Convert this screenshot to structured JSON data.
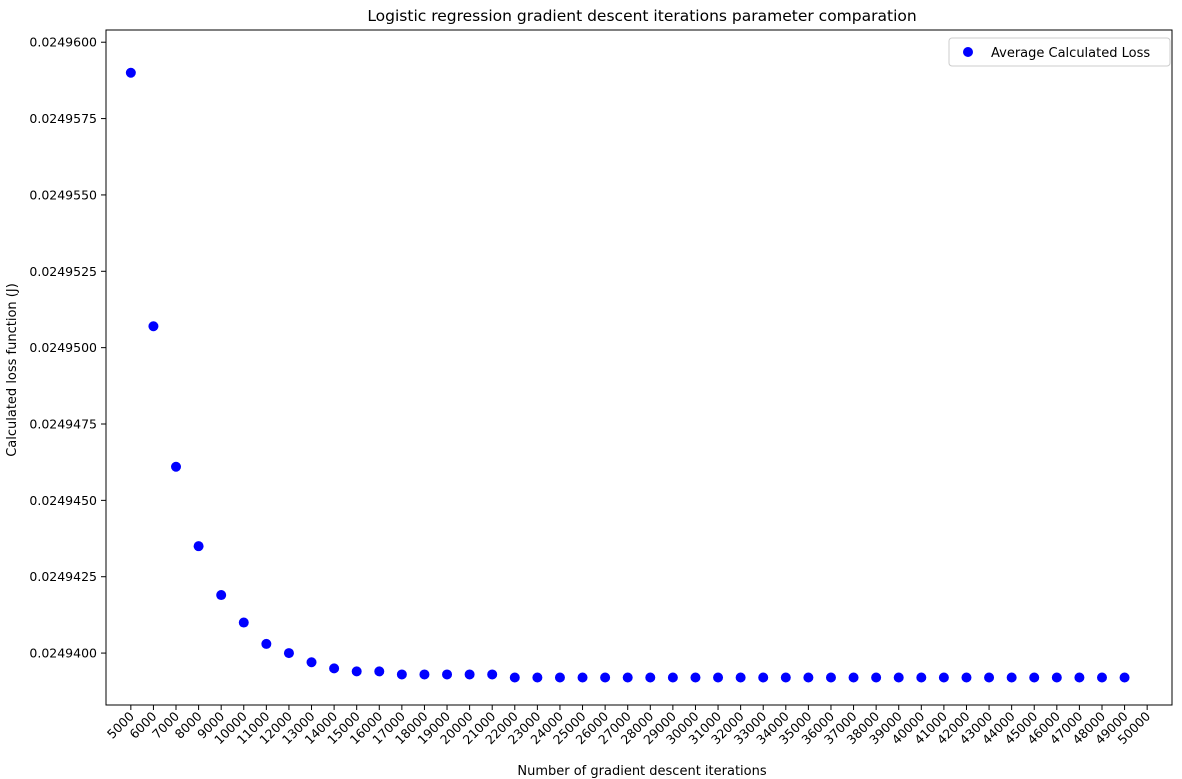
{
  "chart_data": {
    "type": "scatter",
    "title": "Logistic regression gradient descent iterations parameter comparation",
    "xlabel": "Number of gradient descent iterations",
    "ylabel": "Calculated loss function (J)",
    "x": [
      5000,
      6000,
      7000,
      8000,
      9000,
      10000,
      11000,
      12000,
      13000,
      14000,
      15000,
      16000,
      17000,
      18000,
      19000,
      20000,
      21000,
      22000,
      23000,
      24000,
      25000,
      26000,
      27000,
      28000,
      29000,
      30000,
      31000,
      32000,
      33000,
      34000,
      35000,
      36000,
      37000,
      38000,
      39000,
      40000,
      41000,
      42000,
      43000,
      44000,
      45000,
      46000,
      47000,
      48000,
      49000,
      50000
    ],
    "x_tick_labels": [
      "5000",
      "6000",
      "7000",
      "8000",
      "9000",
      "10000",
      "11000",
      "12000",
      "13000",
      "14000",
      "15000",
      "16000",
      "17000",
      "18000",
      "19000",
      "20000",
      "21000",
      "22000",
      "23000",
      "24000",
      "25000",
      "26000",
      "27000",
      "28000",
      "29000",
      "30000",
      "31000",
      "32000",
      "33000",
      "34000",
      "35000",
      "36000",
      "37000",
      "38000",
      "39000",
      "40000",
      "41000",
      "42000",
      "43000",
      "44000",
      "45000",
      "46000",
      "47000",
      "48000",
      "49000",
      "50000"
    ],
    "y_tick_values": [
      0.02494,
      0.0249425,
      0.024945,
      0.0249475,
      0.02495,
      0.0249525,
      0.024955,
      0.0249575,
      0.02496
    ],
    "y_tick_labels": [
      "0.0249400",
      "0.0249425",
      "0.0249450",
      "0.0249475",
      "0.0249500",
      "0.0249525",
      "0.0249550",
      "0.0249575",
      "0.0249600"
    ],
    "ylim": [
      0.0249383,
      0.0249604
    ],
    "xlim": [
      3900,
      51100
    ],
    "grid": false,
    "legend_position": "top-right",
    "series": [
      {
        "name": "Average Calculated Loss",
        "color": "#0000ff",
        "marker": "circle",
        "values": [
          0.024959,
          0.0249507,
          0.0249461,
          0.0249435,
          0.0249419,
          0.024941,
          0.0249403,
          0.02494,
          0.0249397,
          0.0249395,
          0.0249394,
          0.0249394,
          0.0249393,
          0.0249393,
          0.0249393,
          0.0249393,
          0.0249393,
          0.0249392,
          0.0249392,
          0.0249392,
          0.0249392,
          0.0249392,
          0.0249392,
          0.0249392,
          0.0249392,
          0.0249392,
          0.0249392,
          0.0249392,
          0.0249392,
          0.0249392,
          0.0249392,
          0.0249392,
          0.0249392,
          0.0249392,
          0.0249392,
          0.0249392,
          0.0249392,
          0.0249392,
          0.0249392,
          0.0249392,
          0.0249392,
          0.0249392,
          0.0249392,
          0.0249392,
          0.0249392,
          null
        ]
      }
    ]
  }
}
